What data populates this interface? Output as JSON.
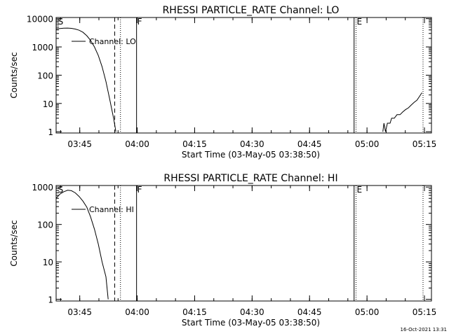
{
  "footer_timestamp": "16-Oct-2021 13:31",
  "chart_data": [
    {
      "type": "line",
      "title": "RHESSI PARTICLE_RATE Channel: LO",
      "xlabel": "Start Time (03-May-05 03:38:50)",
      "ylabel": "Counts/sec",
      "y_scale": "log",
      "ylim": [
        0.9,
        11000
      ],
      "xlim_min": [
        0,
        98
      ],
      "x_ticks_min": [
        6.17,
        21.17,
        36.17,
        51.17,
        66.17,
        81.17,
        96.17
      ],
      "x_tick_labels": [
        "03:45",
        "04:00",
        "04:15",
        "04:30",
        "04:45",
        "05:00",
        "05:15"
      ],
      "y_ticks": [
        1,
        10,
        100,
        1000,
        10000
      ],
      "y_tick_labels": [
        "1",
        "10",
        "100",
        "1000",
        "10000"
      ],
      "legend": {
        "entry": "Channel: LO",
        "placement": "top-left"
      },
      "markers": [
        {
          "label": "S",
          "x": 0.3,
          "style": "none"
        },
        {
          "label": "",
          "x": 15.3,
          "style": "dashed"
        },
        {
          "label": "",
          "x": 16.8,
          "style": "dotted"
        },
        {
          "label": "F",
          "x": 21.0,
          "style": "solid"
        },
        {
          "label": "",
          "x": 77.8,
          "style": "solid"
        },
        {
          "label": "E",
          "x": 78.3,
          "style": "dotted"
        },
        {
          "label": "",
          "x": 95.8,
          "style": "dotted"
        }
      ],
      "series": [
        {
          "name": "Channel: LO",
          "segments": [
            [
              [
                0,
                4400
              ],
              [
                1,
                4500
              ],
              [
                2,
                4600
              ],
              [
                3,
                4650
              ],
              [
                4,
                4550
              ],
              [
                5,
                4300
              ],
              [
                6,
                3900
              ],
              [
                7,
                3300
              ],
              [
                8,
                2500
              ],
              [
                9,
                1700
              ],
              [
                10,
                1000
              ],
              [
                11,
                500
              ],
              [
                12,
                200
              ],
              [
                13,
                60
              ],
              [
                14,
                14
              ],
              [
                15,
                3
              ],
              [
                15.6,
                1
              ]
            ],
            [
              [
                85.3,
                1
              ],
              [
                85.6,
                2
              ],
              [
                86.0,
                1
              ],
              [
                86.5,
                2
              ],
              [
                87.2,
                2
              ],
              [
                87.6,
                3
              ],
              [
                88.3,
                3
              ],
              [
                89.0,
                4
              ],
              [
                89.8,
                4
              ],
              [
                90.5,
                5
              ],
              [
                91.2,
                6
              ],
              [
                92.0,
                7
              ],
              [
                92.8,
                9
              ],
              [
                93.5,
                11
              ],
              [
                94.2,
                13
              ],
              [
                94.9,
                18
              ],
              [
                95.5,
                24
              ]
            ]
          ]
        }
      ]
    },
    {
      "type": "line",
      "title": "RHESSI PARTICLE_RATE Channel: HI",
      "xlabel": "Start Time (03-May-05 03:38:50)",
      "ylabel": "Counts/sec",
      "y_scale": "log",
      "ylim": [
        0.9,
        1100
      ],
      "xlim_min": [
        0,
        98
      ],
      "x_ticks_min": [
        6.17,
        21.17,
        36.17,
        51.17,
        66.17,
        81.17,
        96.17
      ],
      "x_tick_labels": [
        "03:45",
        "04:00",
        "04:15",
        "04:30",
        "04:45",
        "05:00",
        "05:15"
      ],
      "y_ticks": [
        1,
        10,
        100,
        1000
      ],
      "y_tick_labels": [
        "1",
        "10",
        "100",
        "1000"
      ],
      "legend": {
        "entry": "Channel: HI",
        "placement": "top-left"
      },
      "markers": [
        {
          "label": "S",
          "x": 0.3,
          "style": "none"
        },
        {
          "label": "",
          "x": 15.3,
          "style": "dashed"
        },
        {
          "label": "",
          "x": 16.8,
          "style": "dotted"
        },
        {
          "label": "F",
          "x": 21.0,
          "style": "solid"
        },
        {
          "label": "",
          "x": 77.8,
          "style": "solid"
        },
        {
          "label": "E",
          "x": 78.3,
          "style": "dotted"
        },
        {
          "label": "",
          "x": 95.8,
          "style": "dotted"
        }
      ],
      "series": [
        {
          "name": "Channel: HI",
          "segments": [
            [
              [
                0,
                500
              ],
              [
                1,
                650
              ],
              [
                2,
                750
              ],
              [
                3,
                820
              ],
              [
                4,
                800
              ],
              [
                5,
                700
              ],
              [
                6,
                560
              ],
              [
                7,
                420
              ],
              [
                8,
                290
              ],
              [
                9,
                160
              ],
              [
                10,
                75
              ],
              [
                11,
                30
              ],
              [
                12,
                10
              ],
              [
                13,
                4
              ],
              [
                13.6,
                1
              ]
            ]
          ]
        }
      ]
    }
  ]
}
